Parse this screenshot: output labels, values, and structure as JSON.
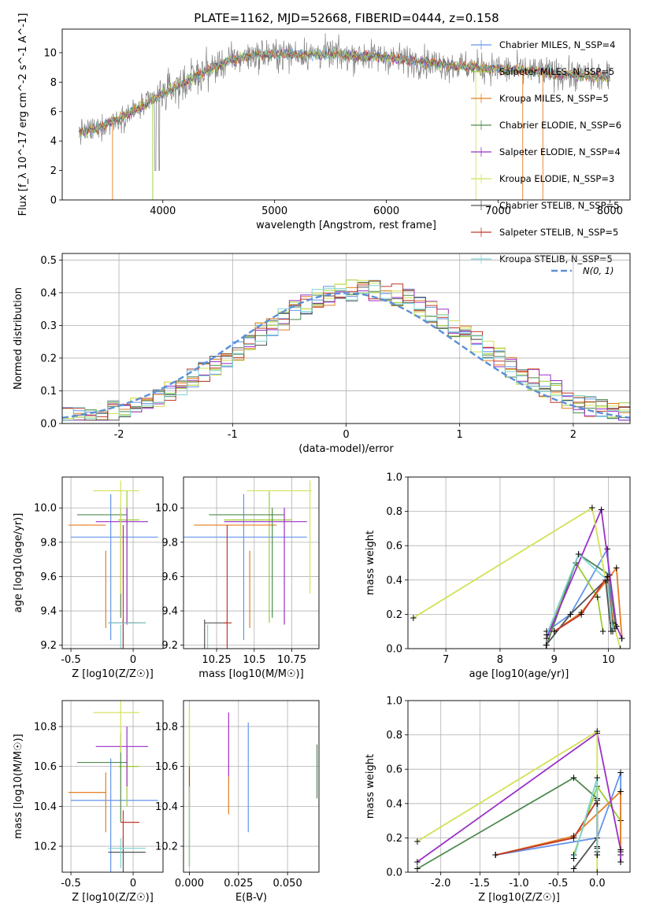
{
  "figure": {
    "title": "PLATE=1162, MJD=52668, FIBERID=0444, z=0.158"
  },
  "chart_data": [
    {
      "id": "spectrum",
      "type": "line",
      "xlabel": "wavelength [Angstrom, rest frame]",
      "ylabel": "Flux [f_λ 10^-17 erg cm^-2 s^-1 A^-1]",
      "xlim": [
        3100,
        8180
      ],
      "ylim": [
        0,
        11.6
      ],
      "xticks": [
        4000,
        5000,
        6000,
        7000,
        8000
      ],
      "yticks": [
        0,
        2,
        4,
        6,
        8,
        10
      ],
      "grid": false,
      "legend_placement": "right",
      "observed_color": "#808080",
      "continuum": {
        "x": [
          3250,
          3400,
          3600,
          3800,
          4000,
          4200,
          4400,
          4600,
          4800,
          5000,
          5500,
          6000,
          6500,
          7000,
          7500,
          8000
        ],
        "y": [
          4.6,
          4.8,
          5.5,
          6.3,
          7.2,
          8.0,
          8.8,
          9.5,
          9.8,
          9.9,
          9.9,
          9.7,
          9.2,
          8.9,
          8.6,
          8.3
        ]
      },
      "series": [
        {
          "name": "Chabrier MILES, N_SSP=4",
          "color": "#6495ed"
        },
        {
          "name": "Salpeter MILES, N_SSP=5",
          "color": "#9acd32"
        },
        {
          "name": "Kroupa MILES, N_SSP=5",
          "color": "#e67e22"
        },
        {
          "name": "Chabrier ELODIE, N_SSP=6",
          "color": "#4f8a4f"
        },
        {
          "name": "Salpeter ELODIE, N_SSP=4",
          "color": "#9b30c8"
        },
        {
          "name": "Kroupa ELODIE, N_SSP=3",
          "color": "#d4e157"
        },
        {
          "name": "Chabrier STELIB, N_SSP=5",
          "color": "#555555"
        },
        {
          "name": "Salpeter STELIB, N_SSP=5",
          "color": "#c0392b"
        },
        {
          "name": "Kroupa STELIB, N_SSP=5",
          "color": "#7fd3d3"
        }
      ]
    },
    {
      "id": "residual-histogram",
      "type": "line",
      "xlabel": "(data-model)/error",
      "ylabel": "Normed distribution",
      "xlim": [
        -2.5,
        2.5
      ],
      "ylim": [
        0,
        0.52
      ],
      "xticks": [
        -2,
        -1,
        0,
        1,
        2
      ],
      "yticks": [
        0.0,
        0.1,
        0.2,
        0.3,
        0.4,
        0.5
      ],
      "grid": true,
      "legend": {
        "label": "N(0, 1)",
        "placement": "top-right",
        "color": "#5b8fd9"
      },
      "bins": {
        "start": -2.5,
        "width": 0.1,
        "count": 50
      }
    },
    {
      "id": "age-vs-Z",
      "type": "scatter",
      "xlabel": "Z [log10(Z/Z☉)]",
      "ylabel": "age [log10(age/yr)]",
      "xlim": [
        -0.57,
        0.24
      ],
      "ylim": [
        9.18,
        10.18
      ],
      "xticks": [
        -0.5,
        0.0
      ],
      "yticks": [
        9.2,
        9.4,
        9.6,
        9.8,
        10.0
      ],
      "grid": true
    },
    {
      "id": "age-vs-mass",
      "type": "scatter",
      "xlabel": "mass [log10(M/M☉)]",
      "ylabel": "",
      "xlim": [
        10.03,
        10.93
      ],
      "ylim": [
        9.18,
        10.18
      ],
      "xticks": [
        10.25,
        10.5,
        10.75
      ],
      "yticks": [
        9.2,
        9.4,
        9.6,
        9.8,
        10.0
      ],
      "grid": true
    },
    {
      "id": "mass-weight-vs-age",
      "type": "line",
      "xlabel": "age [log10(age/yr)]",
      "ylabel": "mass weight",
      "xlim": [
        6.3,
        10.4
      ],
      "ylim": [
        0,
        1.0
      ],
      "xticks": [
        7,
        8,
        9,
        10
      ],
      "yticks": [
        0.0,
        0.2,
        0.4,
        0.6,
        0.8,
        1.0
      ],
      "grid": true
    },
    {
      "id": "mass-vs-Z",
      "type": "scatter",
      "xlabel": "Z [log10(Z/Z☉)]",
      "ylabel": "mass [log10(M/M☉)]",
      "xlim": [
        -0.57,
        0.24
      ],
      "ylim": [
        10.07,
        10.93
      ],
      "xticks": [
        -0.5,
        0.0
      ],
      "yticks": [
        10.2,
        10.4,
        10.6,
        10.8
      ],
      "grid": true
    },
    {
      "id": "mass-vs-EBV",
      "type": "scatter",
      "xlabel": "E(B-V)",
      "ylabel": "",
      "xlim": [
        -0.003,
        0.066
      ],
      "ylim": [
        10.07,
        10.93
      ],
      "xticks": [
        0.0,
        0.025,
        0.05
      ],
      "xtick_labels": [
        "0.000",
        "0.025",
        "0.050"
      ],
      "yticks": [
        10.2,
        10.4,
        10.6,
        10.8
      ],
      "grid": true
    },
    {
      "id": "mass-weight-vs-Z",
      "type": "line",
      "xlabel": "Z [log10(Z/Z☉)]",
      "ylabel": "mass weight",
      "xlim": [
        -2.42,
        0.42
      ],
      "ylim": [
        0,
        1.0
      ],
      "xticks": [
        -2.0,
        -1.5,
        -1.0,
        -0.5,
        0.0
      ],
      "yticks": [
        0.0,
        0.2,
        0.4,
        0.6,
        0.8,
        1.0
      ],
      "grid": true
    }
  ],
  "fits": [
    {
      "name": "Chabrier MILES",
      "color": "#6495ed",
      "age": [
        9.83,
        10.08
      ],
      "Z": [
        -0.5,
        0.2,
        -0.18
      ],
      "mass": [
        10.02,
        10.85,
        10.43
      ],
      "massErr": 0.42,
      "ebv": 0.03,
      "ebvRange": [
        10.27,
        10.82
      ],
      "ages": [
        8.86,
        9.3,
        9.98
      ],
      "Zw": [
        -1.3,
        0.0,
        0.3
      ],
      "w": [
        0.1,
        0.2,
        0.58,
        0.12
      ]
    },
    {
      "name": "Salpeter MILES",
      "color": "#9acd32",
      "age": [
        9.93,
        10.1
      ],
      "Z": [
        -0.12,
        0.05,
        -0.05
      ],
      "mass": [
        10.3,
        10.75,
        10.6
      ],
      "massErr": 0.2,
      "ebv": 0.0,
      "ebvRange": [
        10.1,
        10.9
      ],
      "ages": [
        8.9,
        9.4,
        9.8
      ],
      "Zw": [
        -0.3,
        0.0,
        0.3
      ],
      "w": [
        0.1,
        0.5,
        0.3,
        0.1
      ]
    },
    {
      "name": "Kroupa MILES",
      "color": "#e67e22",
      "age": [
        9.9,
        9.75
      ],
      "Z": [
        -0.52,
        -0.22,
        -0.22
      ],
      "mass": [
        10.1,
        10.65,
        10.47
      ],
      "massErr": 0.2,
      "ebv": 0.02,
      "ebvRange": [
        10.36,
        10.55
      ],
      "ages": [
        9.0,
        9.5,
        10.15
      ],
      "Zw": [
        -1.3,
        -0.3,
        0.3
      ],
      "w": [
        0.1,
        0.21,
        0.47,
        0.06
      ]
    },
    {
      "name": "Chabrier ELODIE",
      "color": "#4f8a4f",
      "age": [
        9.96,
        10.0
      ],
      "Z": [
        -0.45,
        -0.05,
        -0.1
      ],
      "mass": [
        10.2,
        10.7,
        10.62
      ],
      "massErr": 0.3,
      "ebv": 0.065,
      "ebvRange": [
        10.44,
        10.71
      ],
      "ages": [
        8.86,
        9.45,
        10.02
      ],
      "Zw": [
        -2.3,
        -0.3,
        0.0
      ],
      "w": [
        0.02,
        0.55,
        0.43,
        0.14
      ]
    },
    {
      "name": "Salpeter ELODIE",
      "color": "#9b30c8",
      "age": [
        9.92,
        10.0
      ],
      "Z": [
        -0.3,
        0.12,
        -0.05
      ],
      "mass": [
        10.3,
        10.85,
        10.7
      ],
      "massErr": 0.2,
      "ebv": 0.02,
      "ebvRange": [
        10.55,
        10.87
      ],
      "ages": [
        8.86,
        9.87,
        10.15
      ],
      "Zw": [
        -2.3,
        0.0,
        0.3
      ],
      "w": [
        0.06,
        0.81,
        0.13,
        0.06
      ]
    },
    {
      "name": "Kroupa ELODIE",
      "color": "#d4e157",
      "age": [
        10.1,
        10.16
      ],
      "Z": [
        -0.32,
        0.05,
        -0.1
      ],
      "mass": [
        10.45,
        10.88,
        10.87
      ],
      "massErr": 0.2,
      "ebv": 0.0,
      "ebvRange": [
        10.6,
        10.9
      ],
      "ages": [
        6.4,
        9.7,
        10.12
      ],
      "Zw": [
        -2.3,
        0.0,
        0.0
      ],
      "w": [
        0.18,
        0.82,
        0.12,
        0.0
      ]
    },
    {
      "name": "Chabrier STELIB",
      "color": "#555555",
      "age": [
        9.33,
        9.35
      ],
      "Z": [
        -0.2,
        0.1,
        -0.08
      ],
      "mass": [
        10.17,
        10.32,
        10.17
      ],
      "massErr": 0.15,
      "ebv": 0.0,
      "ebvRange": [
        10.1,
        10.5
      ],
      "ages": [
        8.85,
        9.3,
        9.95
      ],
      "Zw": [
        -0.3,
        0.0,
        0.0
      ],
      "w": [
        0.02,
        0.2,
        0.4,
        0.1
      ]
    },
    {
      "name": "Salpeter STELIB",
      "color": "#c0392b",
      "age": [
        9.33,
        9.9
      ],
      "Z": [
        -0.1,
        0.05,
        -0.08
      ],
      "mass": [
        10.3,
        10.35,
        10.32
      ],
      "massErr": 0.12,
      "ebv": 0.0,
      "ebvRange": [
        10.4,
        10.6
      ],
      "ages": [
        9.0,
        9.5,
        9.98
      ],
      "Zw": [
        -1.3,
        -0.3,
        0.0
      ],
      "w": [
        0.1,
        0.2,
        0.42,
        0.15
      ]
    },
    {
      "name": "Kroupa STELIB",
      "color": "#7fd3d3",
      "age": [
        9.33,
        9.32
      ],
      "Z": [
        -0.2,
        0.1,
        -0.1
      ],
      "mass": [
        10.2,
        10.2,
        10.19
      ],
      "massErr": 0.1,
      "ebv": 0.0,
      "ebvRange": [
        10.1,
        10.5
      ],
      "ages": [
        8.86,
        9.45,
        9.98
      ],
      "Zw": [
        -0.3,
        0.0,
        0.0
      ],
      "w": [
        0.08,
        0.55,
        0.4,
        0.1
      ]
    }
  ]
}
